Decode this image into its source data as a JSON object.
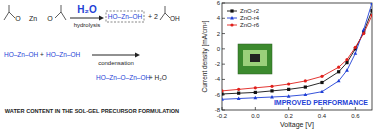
{
  "chart_data": {
    "type": "line",
    "x_label": "Voltage [V]",
    "y_label": "Current density [mA/cm²]",
    "annotation": "IMPROVED PERFORMANCE",
    "x": [
      -0.2,
      -0.1,
      0,
      0.1,
      0.2,
      0.3,
      0.4,
      0.5,
      0.55,
      0.6,
      0.65,
      0.7
    ],
    "series": [
      {
        "name": "ZnO-r2",
        "color": "#111111",
        "marker": "square",
        "values": [
          -5.9,
          -5.8,
          -5.7,
          -5.5,
          -5.3,
          -5.0,
          -4.4,
          -3.0,
          -1.8,
          0.0,
          2.2,
          5.0
        ]
      },
      {
        "name": "ZnO-r4",
        "color": "#1f3fd6",
        "marker": "triangle",
        "values": [
          -6.6,
          -6.5,
          -6.4,
          -6.3,
          -6.2,
          -6.0,
          -5.6,
          -4.2,
          -2.8,
          -0.6,
          2.5,
          6.0
        ]
      },
      {
        "name": "ZnO-r6",
        "color": "#e0201c",
        "marker": "circle",
        "values": [
          -5.5,
          -5.3,
          -5.1,
          -4.9,
          -4.6,
          -4.2,
          -3.6,
          -2.4,
          -1.4,
          0.2,
          2.0,
          4.4
        ]
      }
    ],
    "xlim": [
      -0.2,
      0.7
    ],
    "xticks": [
      -0.2,
      {
        "value": 0,
        "label": "0.0"
      },
      0.2,
      0.4,
      0.6
    ],
    "ylim": [
      -8,
      6
    ],
    "yticks": [
      -8,
      -6,
      -4,
      -2,
      0,
      2,
      4,
      6
    ],
    "grid": false,
    "legend": "top-left"
  },
  "scheme": {
    "reactant_atoms": [
      "O",
      "Zn",
      "O"
    ],
    "reagent": "H₂O",
    "step_1": "hydrolysis",
    "intermediate": "HO–Zn–OH",
    "coefficient": "+ 2",
    "byproduct_group": "OH",
    "row_2": [
      "HO–Zn–OH",
      "+",
      "HO–Zn–OH"
    ],
    "step_2": "condensation",
    "product": "HO–Zn–O–Zn–OH",
    "product_plus": "+ H₂O",
    "caption": "WATER CONTENT IN THE SOL-GEL PRECURSOR FORMULATION"
  }
}
